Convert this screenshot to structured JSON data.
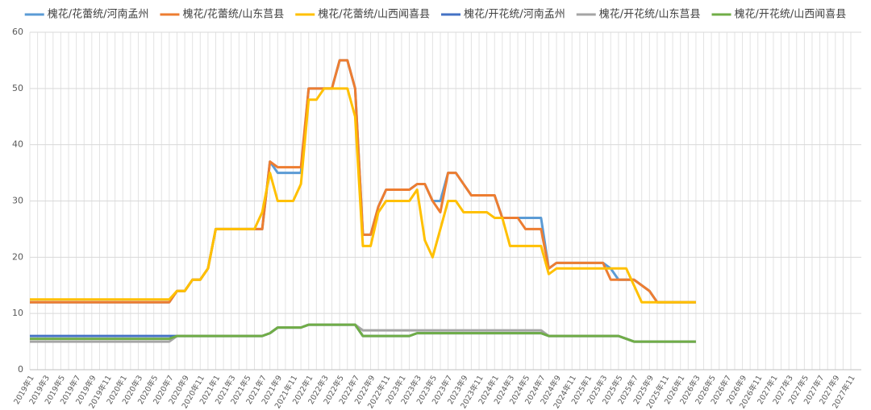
{
  "chart_data": {
    "type": "line",
    "categories": [
      "2019年1",
      null,
      "2019年3",
      null,
      "2019年5",
      null,
      "2019年7",
      null,
      "2019年9",
      null,
      "2019年11",
      null,
      "2020年1",
      null,
      "2020年3",
      null,
      "2020年5",
      null,
      "2020年7",
      null,
      "2020年9",
      null,
      "2020年11",
      null,
      "2021年1",
      null,
      "2021年3",
      null,
      "2021年5",
      null,
      "2021年7",
      null,
      "2021年9",
      null,
      "2021年11",
      null,
      "2022年1",
      null,
      "2022年3",
      null,
      "2022年5",
      null,
      "2022年7",
      null,
      "2022年9",
      null,
      "2022年11",
      null,
      "2023年1",
      null,
      "2023年3",
      null,
      "2023年5",
      null,
      "2023年7",
      null,
      "2023年9",
      null,
      "2023年11",
      null,
      "2024年1",
      null,
      "2024年3",
      null,
      "2024年5",
      null,
      "2024年7",
      null,
      "2024年9",
      null,
      "2024年11",
      null,
      "2025年1",
      null,
      "2025年3",
      null,
      "2025年5",
      null,
      "2025年7",
      null,
      "2025年9",
      null,
      "2025年11",
      null,
      "2026年1",
      null,
      "2026年3",
      null,
      "2026年5",
      null,
      "2026年7",
      null,
      "2026年9",
      null,
      "2026年11",
      null,
      "2027年1",
      null,
      "2027年3",
      null,
      "2027年5",
      null,
      "2027年7",
      null,
      "2027年9",
      null,
      "2027年11"
    ],
    "series": [
      {
        "name": "槐花/花蕾统/河南孟州",
        "color": "#5b9bd5",
        "values": [
          12,
          12,
          12,
          12,
          12,
          12,
          12,
          12,
          12,
          12,
          12,
          12,
          12,
          12,
          12,
          12,
          12,
          12,
          12,
          14,
          14,
          16,
          16,
          18,
          25,
          25,
          25,
          25,
          25,
          25,
          25,
          37,
          35,
          35,
          35,
          35,
          50,
          50,
          50,
          50,
          55,
          55,
          50,
          24,
          24,
          29,
          32,
          32,
          32,
          32,
          33,
          33,
          30,
          30,
          35,
          35,
          33,
          31,
          31,
          31,
          31,
          27,
          27,
          27,
          27,
          27,
          27,
          18,
          19,
          19,
          19,
          19,
          19,
          19,
          19,
          18,
          16,
          16,
          16,
          15,
          14,
          12,
          12,
          12,
          12,
          12,
          12,
          null,
          null,
          null,
          null,
          null,
          null,
          null,
          null,
          null,
          null,
          null,
          null,
          null,
          null,
          null,
          null,
          null,
          null,
          null,
          null
        ]
      },
      {
        "name": "槐花/花蕾统/山东莒县",
        "color": "#ed7d31",
        "values": [
          12,
          12,
          12,
          12,
          12,
          12,
          12,
          12,
          12,
          12,
          12,
          12,
          12,
          12,
          12,
          12,
          12,
          12,
          12,
          14,
          14,
          16,
          16,
          18,
          25,
          25,
          25,
          25,
          25,
          25,
          25,
          37,
          36,
          36,
          36,
          36,
          50,
          50,
          50,
          50,
          55,
          55,
          50,
          24,
          24,
          29,
          32,
          32,
          32,
          32,
          33,
          33,
          30,
          28,
          35,
          35,
          33,
          31,
          31,
          31,
          31,
          27,
          27,
          27,
          25,
          25,
          25,
          18,
          19,
          19,
          19,
          19,
          19,
          19,
          19,
          16,
          16,
          16,
          16,
          15,
          14,
          12,
          12,
          12,
          12,
          12,
          12,
          null,
          null,
          null,
          null,
          null,
          null,
          null,
          null,
          null,
          null,
          null,
          null,
          null,
          null,
          null,
          null,
          null,
          null,
          null,
          null
        ]
      },
      {
        "name": "槐花/花蕾统/山西闻喜县",
        "color": "#ffc000",
        "values": [
          12.5,
          12.5,
          12.5,
          12.5,
          12.5,
          12.5,
          12.5,
          12.5,
          12.5,
          12.5,
          12.5,
          12.5,
          12.5,
          12.5,
          12.5,
          12.5,
          12.5,
          12.5,
          12.5,
          14,
          14,
          16,
          16,
          18,
          25,
          25,
          25,
          25,
          25,
          25,
          28,
          35,
          30,
          30,
          30,
          33,
          48,
          48,
          50,
          50,
          50,
          50,
          45,
          22,
          22,
          28,
          30,
          30,
          30,
          30,
          32,
          23,
          20,
          25,
          30,
          30,
          28,
          28,
          28,
          28,
          27,
          27,
          22,
          22,
          22,
          22,
          22,
          17,
          18,
          18,
          18,
          18,
          18,
          18,
          18,
          18,
          18,
          18,
          15,
          12,
          12,
          12,
          12,
          12,
          12,
          12,
          12,
          null,
          null,
          null,
          null,
          null,
          null,
          null,
          null,
          null,
          null,
          null,
          null,
          null,
          null,
          null,
          null,
          null,
          null,
          null,
          null
        ]
      },
      {
        "name": "槐花/开花统/河南孟州",
        "color": "#4472c4",
        "values": [
          6,
          6,
          6,
          6,
          6,
          6,
          6,
          6,
          6,
          6,
          6,
          6,
          6,
          6,
          6,
          6,
          6,
          6,
          6,
          6,
          6,
          6,
          6,
          6,
          6,
          6,
          6,
          6,
          6,
          6,
          6,
          6.5,
          7.5,
          7.5,
          7.5,
          7.5,
          8,
          8,
          8,
          8,
          8,
          8,
          8,
          6,
          6,
          6,
          6,
          6,
          6,
          6,
          6.5,
          6.5,
          6.5,
          6.5,
          6.5,
          6.5,
          6.5,
          6.5,
          6.5,
          6.5,
          6.5,
          6.5,
          6.5,
          6.5,
          6.5,
          6.5,
          6.5,
          6,
          6,
          6,
          6,
          6,
          6,
          6,
          6,
          6,
          6,
          5.5,
          5,
          5,
          5,
          5,
          5,
          5,
          5,
          5,
          5,
          null,
          null,
          null,
          null,
          null,
          null,
          null,
          null,
          null,
          null,
          null,
          null,
          null,
          null,
          null,
          null,
          null,
          null,
          null,
          null
        ]
      },
      {
        "name": "槐花/开花统/山东莒县",
        "color": "#a5a5a5",
        "values": [
          5,
          5,
          5,
          5,
          5,
          5,
          5,
          5,
          5,
          5,
          5,
          5,
          5,
          5,
          5,
          5,
          5,
          5,
          5,
          6,
          6,
          6,
          6,
          6,
          6,
          6,
          6,
          6,
          6,
          6,
          6,
          6.5,
          7.5,
          7.5,
          7.5,
          7.5,
          8,
          8,
          8,
          8,
          8,
          8,
          8,
          7,
          7,
          7,
          7,
          7,
          7,
          7,
          7,
          7,
          7,
          7,
          7,
          7,
          7,
          7,
          7,
          7,
          7,
          7,
          7,
          7,
          7,
          7,
          7,
          6,
          6,
          6,
          6,
          6,
          6,
          6,
          6,
          6,
          6,
          5.5,
          5,
          5,
          5,
          5,
          5,
          5,
          5,
          5,
          5,
          null,
          null,
          null,
          null,
          null,
          null,
          null,
          null,
          null,
          null,
          null,
          null,
          null,
          null,
          null,
          null,
          null,
          null,
          null,
          null
        ]
      },
      {
        "name": "槐花/开花统/山西闻喜县",
        "color": "#70ad47",
        "values": [
          5.5,
          5.5,
          5.5,
          5.5,
          5.5,
          5.5,
          5.5,
          5.5,
          5.5,
          5.5,
          5.5,
          5.5,
          5.5,
          5.5,
          5.5,
          5.5,
          5.5,
          5.5,
          5.5,
          6,
          6,
          6,
          6,
          6,
          6,
          6,
          6,
          6,
          6,
          6,
          6,
          6.5,
          7.5,
          7.5,
          7.5,
          7.5,
          8,
          8,
          8,
          8,
          8,
          8,
          8,
          6,
          6,
          6,
          6,
          6,
          6,
          6,
          6.5,
          6.5,
          6.5,
          6.5,
          6.5,
          6.5,
          6.5,
          6.5,
          6.5,
          6.5,
          6.5,
          6.5,
          6.5,
          6.5,
          6.5,
          6.5,
          6.5,
          6,
          6,
          6,
          6,
          6,
          6,
          6,
          6,
          6,
          6,
          5.5,
          5,
          5,
          5,
          5,
          5,
          5,
          5,
          5,
          5,
          null,
          null,
          null,
          null,
          null,
          null,
          null,
          null,
          null,
          null,
          null,
          null,
          null,
          null,
          null,
          null,
          null,
          null,
          null,
          null
        ]
      }
    ],
    "ylim": [
      0,
      60
    ],
    "yticks": [
      0,
      10,
      20,
      30,
      40,
      50,
      60
    ],
    "grid": true,
    "legend": "top"
  }
}
